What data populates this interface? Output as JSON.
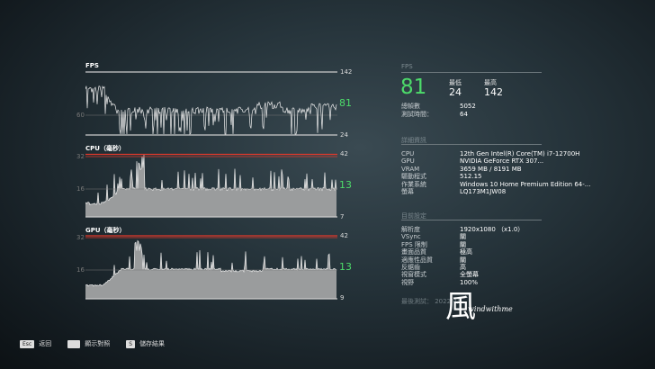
{
  "charts": {
    "fps": {
      "title": "FPS",
      "max": "142",
      "min": "24",
      "mid": "60",
      "current": "81"
    },
    "cpu": {
      "title": "CPU（毫秒）",
      "max": "42",
      "min": "7",
      "mid": "16",
      "upper": "32",
      "current": "13"
    },
    "gpu": {
      "title": "GPU（毫秒）",
      "max": "42",
      "min": "9",
      "mid": "16",
      "upper": "32",
      "current": "13"
    }
  },
  "summary": {
    "header": "FPS",
    "avg": "81",
    "min_label": "最低",
    "min": "24",
    "max_label": "最高",
    "max": "142",
    "rows": [
      {
        "label": "總幀數",
        "value": "5052"
      },
      {
        "label": "測試時間：",
        "value": "64"
      }
    ]
  },
  "details": {
    "header": "詳細資訊",
    "rows": [
      {
        "label": "CPU",
        "value": "12th Gen Intel(R) Core(TM) i7-12700H"
      },
      {
        "label": "GPU",
        "value": "NVIDIA GeForce RTX 307..."
      },
      {
        "label": "VRAM",
        "value": "3659 MB / 8191 MB"
      },
      {
        "label": "驅動程式",
        "value": "512.15"
      },
      {
        "label": "作業系統",
        "value": "Windows 10 Home Premium Edition 64-..."
      },
      {
        "label": "螢幕",
        "value": "LQ173M1JW08"
      }
    ]
  },
  "settings": {
    "header": "目前設定",
    "rows": [
      {
        "label": "解析度",
        "value": "1920x1080 （x1.0）"
      },
      {
        "label": "VSync",
        "value": "關"
      },
      {
        "label": "FPS 限制",
        "value": "關"
      },
      {
        "label": "畫面品質",
        "value": "極高"
      },
      {
        "label": "適應性品質",
        "value": "關"
      },
      {
        "label": "反鋸齒",
        "value": "高"
      },
      {
        "label": "視窗模式",
        "value": "全螢幕"
      },
      {
        "label": "視野",
        "value": "100%"
      }
    ]
  },
  "last_test": "最後測試： 2022/4/",
  "watermark": {
    "glyph": "風",
    "text": "windwithme"
  },
  "footer": [
    {
      "key": "Esc",
      "label": "返回"
    },
    {
      "key": "␣",
      "label": "顯示對照"
    },
    {
      "key": "S",
      "label": "儲存結果"
    }
  ],
  "colors": {
    "accent": "#4ddb6a",
    "limit": "#e0392b"
  }
}
